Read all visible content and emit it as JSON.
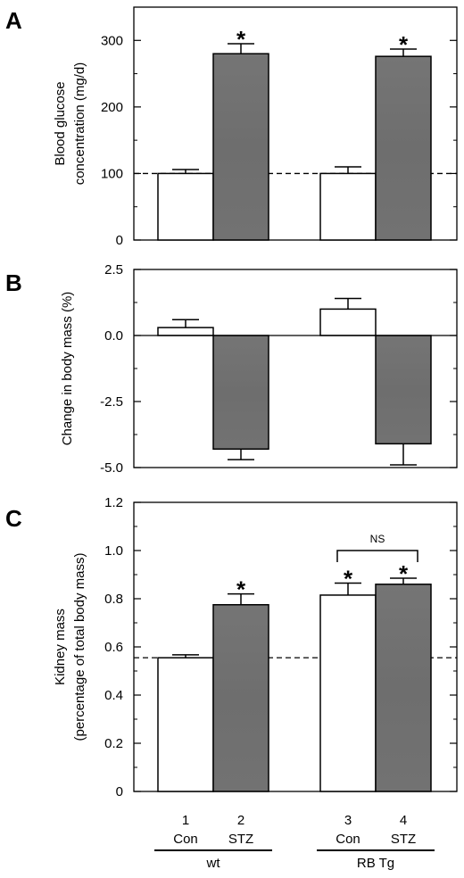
{
  "chart_data": [
    {
      "type": "bar",
      "panel": "A",
      "categories": [
        "1",
        "2",
        "3",
        "4"
      ],
      "values": [
        100,
        280,
        100,
        276
      ],
      "errors": [
        6,
        15,
        10,
        11
      ],
      "bar_fill": [
        "white",
        "gray",
        "white",
        "gray"
      ],
      "ylabel": [
        "Blood glucose",
        "concentration (mg/d)"
      ],
      "ylim": [
        0,
        350
      ],
      "yticks": [
        0,
        100,
        200,
        300
      ],
      "ytick_labels": [
        "0",
        "100",
        "200",
        "300"
      ],
      "reference_line": 100,
      "annotations": [
        {
          "category": "2",
          "text": "*"
        },
        {
          "category": "4",
          "text": "*"
        }
      ]
    },
    {
      "type": "bar",
      "panel": "B",
      "categories": [
        "1",
        "2",
        "3",
        "4"
      ],
      "values": [
        0.3,
        -4.3,
        1.0,
        -4.1
      ],
      "errors": [
        0.3,
        0.4,
        0.4,
        0.8
      ],
      "bar_fill": [
        "white",
        "gray",
        "white",
        "gray"
      ],
      "ylabel": [
        "Change in body mass (%)"
      ],
      "ylim": [
        -5.0,
        2.5
      ],
      "yticks": [
        -5.0,
        -2.5,
        0.0,
        2.5
      ],
      "ytick_labels": [
        "-5.0",
        "-2.5",
        "0.0",
        "2.5"
      ],
      "zero_line": true
    },
    {
      "type": "bar",
      "panel": "C",
      "categories": [
        "1",
        "2",
        "3",
        "4"
      ],
      "values": [
        0.555,
        0.775,
        0.815,
        0.86
      ],
      "errors": [
        0.012,
        0.045,
        0.05,
        0.025
      ],
      "bar_fill": [
        "white",
        "gray",
        "white",
        "gray"
      ],
      "ylabel": [
        "Kidney mass",
        "(percentage of total body mass)"
      ],
      "ylim": [
        0,
        1.2
      ],
      "yticks": [
        0,
        0.2,
        0.4,
        0.6,
        0.8,
        1.0,
        1.2
      ],
      "ytick_labels": [
        "0",
        "0.2",
        "0.4",
        "0.6",
        "0.8",
        "1.0",
        "1.2"
      ],
      "reference_line": 0.555,
      "annotations": [
        {
          "category": "2",
          "text": "*"
        },
        {
          "category": "3",
          "text": "*"
        },
        {
          "category": "4",
          "text": "*"
        }
      ],
      "bracket": {
        "from": "3",
        "to": "4",
        "text": "NS"
      }
    }
  ],
  "x_axis": {
    "numbers": [
      "1",
      "2",
      "3",
      "4"
    ],
    "treatments": [
      "Con",
      "STZ",
      "Con",
      "STZ"
    ],
    "groups": [
      {
        "label": "wt",
        "members": [
          "1",
          "2"
        ]
      },
      {
        "label": "RB Tg",
        "members": [
          "3",
          "4"
        ]
      }
    ]
  },
  "colors": {
    "gray_bar": "#6e6e6e",
    "white_bar": "#ffffff",
    "ink": "#000000"
  }
}
